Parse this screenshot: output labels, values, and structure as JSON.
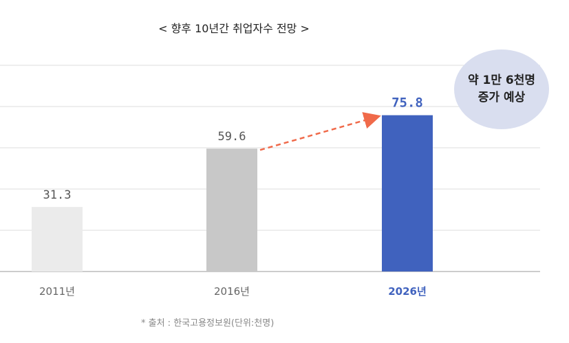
{
  "title": "< 향후 10년간 취업자수 전망 >",
  "source": "* 출처 : 한국고용정보원(단위:천명)",
  "callout": {
    "line1": "약 1만 6천명",
    "line2": "증가 예상"
  },
  "colors": {
    "bar_2011": "#ebebeb",
    "bar_2016": "#c8c8c8",
    "bar_2026": "#4062be",
    "arrow": "#f06a4a",
    "bubble": "#d9deef",
    "grid": "#dddddd"
  },
  "chart_data": {
    "type": "bar",
    "title": "< 향후 10년간 취업자수 전망 >",
    "xlabel": "",
    "ylabel": "",
    "categories": [
      "2011년",
      "2016년",
      "2026년"
    ],
    "values": [
      31.3,
      59.6,
      75.8
    ],
    "value_labels": [
      "31.3",
      "59.6",
      "75.8"
    ],
    "ylim": [
      0,
      100
    ],
    "grid": true,
    "highlight": "2026년",
    "annotation": "약 1만 6천명 증가 예상"
  }
}
